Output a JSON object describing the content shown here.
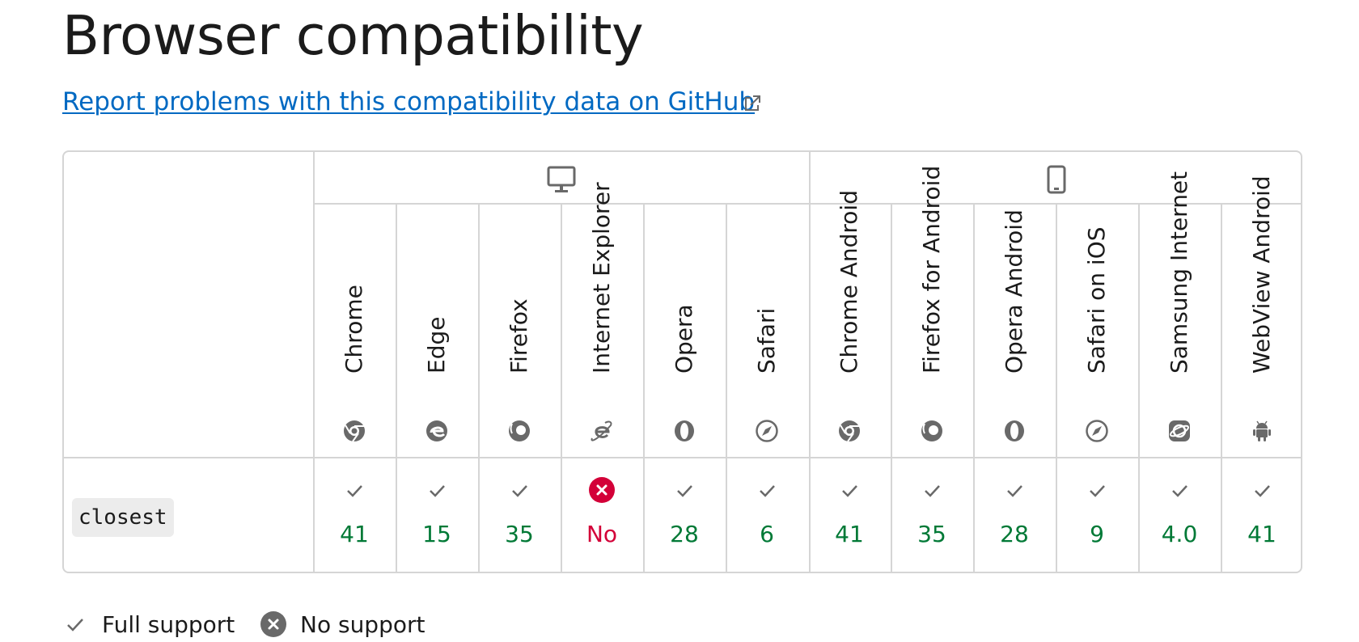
{
  "heading": "Browser compatibility",
  "report_link": "Report problems with this compatibility data on GitHub",
  "platforms": [
    {
      "name": "desktop",
      "icon": "desktop-icon"
    },
    {
      "name": "mobile",
      "icon": "mobile-icon"
    }
  ],
  "browsers": [
    {
      "name": "Chrome",
      "icon": "chrome-icon"
    },
    {
      "name": "Edge",
      "icon": "edge-icon"
    },
    {
      "name": "Firefox",
      "icon": "firefox-icon"
    },
    {
      "name": "Internet Explorer",
      "icon": "internet-explorer-icon"
    },
    {
      "name": "Opera",
      "icon": "opera-icon"
    },
    {
      "name": "Safari",
      "icon": "safari-icon"
    },
    {
      "name": "Chrome Android",
      "icon": "chrome-icon"
    },
    {
      "name": "Firefox for Android",
      "icon": "firefox-icon"
    },
    {
      "name": "Opera Android",
      "icon": "opera-icon"
    },
    {
      "name": "Safari on iOS",
      "icon": "safari-icon"
    },
    {
      "name": "Samsung Internet",
      "icon": "samsung-internet-icon"
    },
    {
      "name": "WebView Android",
      "icon": "android-icon"
    }
  ],
  "feature": {
    "name": "closest",
    "support": [
      {
        "value": "41",
        "supported": true
      },
      {
        "value": "15",
        "supported": true
      },
      {
        "value": "35",
        "supported": true
      },
      {
        "value": "No",
        "supported": false
      },
      {
        "value": "28",
        "supported": true
      },
      {
        "value": "6",
        "supported": true
      },
      {
        "value": "41",
        "supported": true
      },
      {
        "value": "35",
        "supported": true
      },
      {
        "value": "28",
        "supported": true
      },
      {
        "value": "9",
        "supported": true
      },
      {
        "value": "4.0",
        "supported": true
      },
      {
        "value": "41",
        "supported": true
      }
    ]
  },
  "legend": {
    "full_support": "Full support",
    "no_support": "No support"
  },
  "colors": {
    "link": "#0069c2",
    "supported": "#007936",
    "unsupported": "#d30038",
    "border": "#d5d5d5",
    "icon_gray": "#696969"
  }
}
